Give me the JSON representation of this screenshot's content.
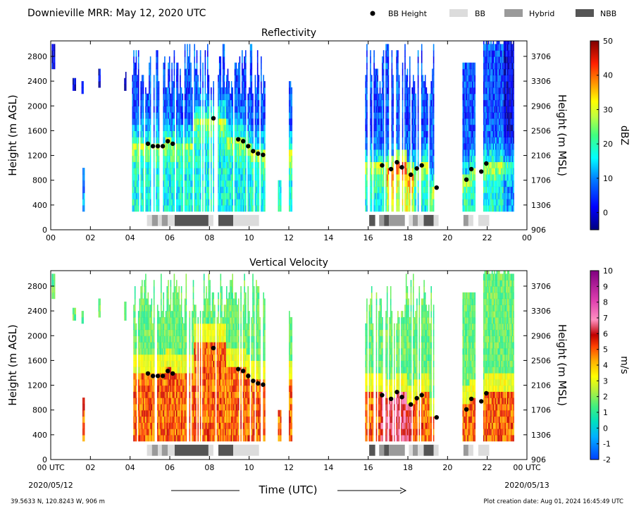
{
  "header": {
    "title": "Downieville MRR:  May 12, 2020 UTC",
    "legend": {
      "bb_height": "BB Height",
      "bb": "BB",
      "hybrid": "Hybrid",
      "nbb": "NBB"
    },
    "legend_colors": {
      "bb": "#dcdcdc",
      "hybrid": "#9a9a9a",
      "nbb": "#555555"
    }
  },
  "footer": {
    "location": "39.5633 N, 120.8243 W, 906 m",
    "creation": "Plot creation date: Aug 01, 2024 16:45:49 UTC",
    "xlabel": "Time (UTC)",
    "date_start": "2020/05/12",
    "date_end": "2020/05/13"
  },
  "chart_data": [
    {
      "type": "heatmap",
      "title": "Reflectivity",
      "ylabel": "Height (m AGL)",
      "ylabel_right": "Height (m MSL)",
      "colorbar_label": "dBZ",
      "xlim": [
        0,
        24
      ],
      "ylim": [
        0,
        3050
      ],
      "x_ticks": [
        "00",
        "02",
        "04",
        "06",
        "08",
        "10",
        "12",
        "14",
        "16",
        "18",
        "20",
        "22",
        "00"
      ],
      "y_ticks": [
        "0",
        "400",
        "800",
        "1200",
        "1600",
        "2000",
        "2400",
        "2800"
      ],
      "y_ticks_right": [
        "906",
        "1306",
        "1706",
        "2106",
        "2506",
        "2906",
        "3306",
        "3706"
      ],
      "colorbar_range": [
        -5,
        50
      ],
      "colorbar_ticks": [
        "0",
        "10",
        "20",
        "30",
        "40",
        "50"
      ],
      "bright_band_heights": {
        "x": [
          4.9,
          5.15,
          5.4,
          5.65,
          5.9,
          6.15,
          8.2,
          9.45,
          9.7,
          9.95,
          10.2,
          10.45,
          10.7,
          16.7,
          17.15,
          17.45,
          17.7,
          18.15,
          18.45,
          18.7,
          19.45,
          20.95,
          21.2,
          21.7,
          21.95
        ],
        "y": [
          1390,
          1350,
          1350,
          1350,
          1430,
          1390,
          1800,
          1460,
          1430,
          1350,
          1270,
          1230,
          1210,
          1040,
          980,
          1090,
          1010,
          890,
          990,
          1040,
          680,
          810,
          980,
          940,
          1070
        ]
      }
    },
    {
      "type": "heatmap",
      "title": "Vertical Velocity",
      "ylabel": "Height (m AGL)",
      "ylabel_right": "Height (m MSL)",
      "colorbar_label": "m/s",
      "xlim": [
        0,
        24
      ],
      "ylim": [
        0,
        3050
      ],
      "x_ticks": [
        "00 UTC",
        "02",
        "04",
        "06",
        "08",
        "10",
        "12",
        "14",
        "16",
        "18",
        "20",
        "22",
        "00 UTC"
      ],
      "y_ticks": [
        "0",
        "400",
        "800",
        "1200",
        "1600",
        "2000",
        "2400",
        "2800"
      ],
      "y_ticks_right": [
        "906",
        "1306",
        "1706",
        "2106",
        "2506",
        "2906",
        "3306",
        "3706"
      ],
      "colorbar_range": [
        -2,
        10
      ],
      "colorbar_ticks": [
        "-2",
        "-1",
        "0",
        "1",
        "2",
        "3",
        "4",
        "5",
        "6",
        "7",
        "8",
        "9",
        "10"
      ],
      "bright_band_heights": {
        "x": [
          4.9,
          5.15,
          5.4,
          5.65,
          5.9,
          6.15,
          8.2,
          9.45,
          9.7,
          9.95,
          10.2,
          10.45,
          10.7,
          16.7,
          17.15,
          17.45,
          17.7,
          18.15,
          18.45,
          18.7,
          19.45,
          20.95,
          21.2,
          21.7,
          21.95
        ],
        "y": [
          1390,
          1350,
          1350,
          1350,
          1430,
          1390,
          1800,
          1460,
          1430,
          1350,
          1270,
          1230,
          1210,
          1040,
          980,
          1090,
          1010,
          890,
          990,
          1040,
          680,
          810,
          980,
          940,
          1070
        ]
      }
    }
  ],
  "bb_type_segments": [
    {
      "start": 4.85,
      "end": 5.1,
      "type": "bb"
    },
    {
      "start": 5.1,
      "end": 5.4,
      "type": "hybrid"
    },
    {
      "start": 5.4,
      "end": 5.6,
      "type": "bb"
    },
    {
      "start": 5.6,
      "end": 5.9,
      "type": "hybrid"
    },
    {
      "start": 5.9,
      "end": 6.25,
      "type": "bb"
    },
    {
      "start": 6.25,
      "end": 7.95,
      "type": "nbb"
    },
    {
      "start": 7.95,
      "end": 8.2,
      "type": "bb"
    },
    {
      "start": 8.45,
      "end": 9.2,
      "type": "nbb"
    },
    {
      "start": 9.2,
      "end": 10.5,
      "type": "bb"
    },
    {
      "start": 16.05,
      "end": 16.35,
      "type": "nbb"
    },
    {
      "start": 16.55,
      "end": 16.8,
      "type": "hybrid"
    },
    {
      "start": 16.8,
      "end": 17.05,
      "type": "nbb"
    },
    {
      "start": 17.05,
      "end": 17.85,
      "type": "hybrid"
    },
    {
      "start": 18.05,
      "end": 18.25,
      "type": "bb"
    },
    {
      "start": 18.25,
      "end": 18.5,
      "type": "hybrid"
    },
    {
      "start": 18.5,
      "end": 18.8,
      "type": "bb"
    },
    {
      "start": 18.8,
      "end": 19.3,
      "type": "nbb"
    },
    {
      "start": 19.3,
      "end": 19.55,
      "type": "bb"
    },
    {
      "start": 20.8,
      "end": 21.05,
      "type": "hybrid"
    },
    {
      "start": 21.05,
      "end": 21.3,
      "type": "bb"
    },
    {
      "start": 21.55,
      "end": 22.1,
      "type": "bb"
    }
  ],
  "data_segments": [
    {
      "start": 0.05,
      "end": 0.2,
      "top": 3000,
      "bottom": 2600
    },
    {
      "start": 1.1,
      "end": 1.25,
      "top": 2450,
      "bottom": 2250
    },
    {
      "start": 1.55,
      "end": 1.65,
      "top": 2400,
      "bottom": 2200
    },
    {
      "start": 1.6,
      "end": 1.7,
      "top": 1000,
      "bottom": 300
    },
    {
      "start": 2.4,
      "end": 2.5,
      "top": 2600,
      "bottom": 2300
    },
    {
      "start": 3.7,
      "end": 3.8,
      "top": 2500,
      "bottom": 2250
    },
    {
      "start": 4.1,
      "end": 10.8,
      "top": 3000,
      "bottom": 300
    },
    {
      "start": 11.45,
      "end": 11.6,
      "top": 800,
      "bottom": 300
    },
    {
      "start": 12.0,
      "end": 12.15,
      "top": 2350,
      "bottom": 300
    },
    {
      "start": 15.85,
      "end": 19.3,
      "top": 3000,
      "bottom": 300
    },
    {
      "start": 20.75,
      "end": 21.4,
      "top": 2700,
      "bottom": 300
    },
    {
      "start": 21.8,
      "end": 23.3,
      "top": 3050,
      "bottom": 300
    }
  ]
}
